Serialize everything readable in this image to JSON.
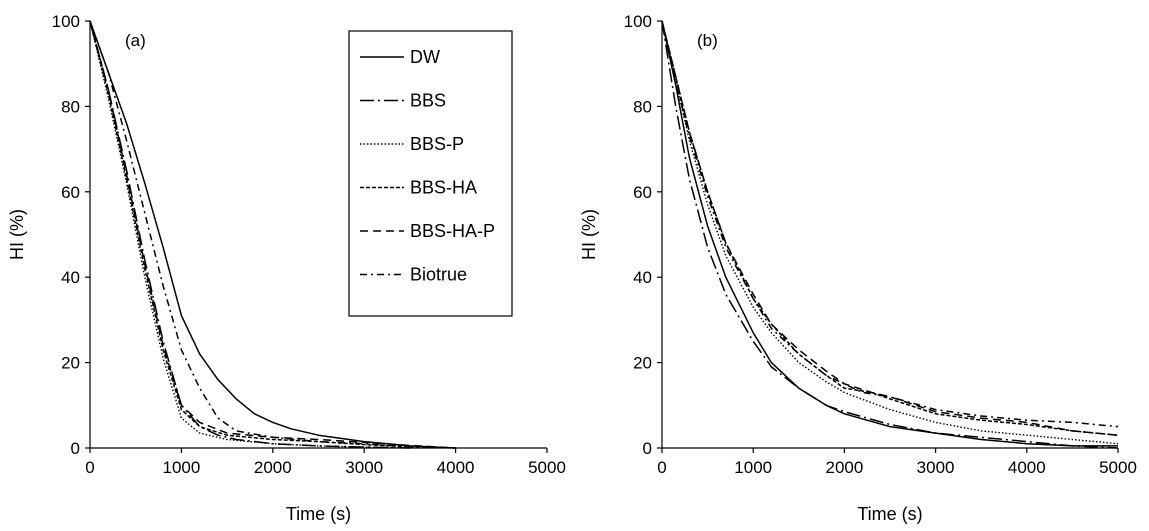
{
  "chart_data": [
    {
      "type": "line",
      "panel_label": "(a)",
      "xlabel": "Time (s)",
      "ylabel": "HI (%)",
      "xlim": [
        0,
        5000
      ],
      "ylim": [
        0,
        100
      ],
      "xticks": [
        "0",
        "1000",
        "2000",
        "3000",
        "4000",
        "5000"
      ],
      "yticks": [
        "0",
        "20",
        "40",
        "60",
        "80",
        "100"
      ],
      "grid": false,
      "legend": {
        "placement": "top-right",
        "entries": [
          "DW",
          "BBS",
          "BBS-P",
          "BBS-HA",
          "BBS-HA-P",
          "Biotrue"
        ]
      },
      "series": [
        {
          "name": "DW",
          "style": "solid",
          "points": [
            [
              0,
              100
            ],
            [
              200,
              88
            ],
            [
              400,
              76
            ],
            [
              600,
              62
            ],
            [
              800,
              47
            ],
            [
              1000,
              31
            ],
            [
              1200,
              22
            ],
            [
              1400,
              16
            ],
            [
              1600,
              11.5
            ],
            [
              1800,
              8
            ],
            [
              2000,
              6
            ],
            [
              2200,
              4.5
            ],
            [
              2500,
              3
            ],
            [
              3000,
              1.5
            ],
            [
              3500,
              0.5
            ],
            [
              4000,
              0
            ]
          ]
        },
        {
          "name": "BBS",
          "style": "dashdot-long",
          "points": [
            [
              0,
              100
            ],
            [
              200,
              84
            ],
            [
              400,
              65
            ],
            [
              600,
              44
            ],
            [
              800,
              25
            ],
            [
              1000,
              10
            ],
            [
              1200,
              5
            ],
            [
              1400,
              3
            ],
            [
              1600,
              2
            ],
            [
              2000,
              1
            ],
            [
              2500,
              0.5
            ],
            [
              3000,
              0.2
            ],
            [
              3500,
              0
            ]
          ]
        },
        {
          "name": "BBS-P",
          "style": "dotted",
          "points": [
            [
              0,
              100
            ],
            [
              200,
              82
            ],
            [
              400,
              62
            ],
            [
              600,
              40
            ],
            [
              800,
              21
            ],
            [
              1000,
              7
            ],
            [
              1200,
              3.5
            ],
            [
              1500,
              2
            ],
            [
              2000,
              1
            ],
            [
              2500,
              0.5
            ],
            [
              3000,
              0.2
            ],
            [
              3500,
              0
            ]
          ]
        },
        {
          "name": "BBS-HA",
          "style": "dashed-short",
          "points": [
            [
              0,
              100
            ],
            [
              200,
              83
            ],
            [
              400,
              63
            ],
            [
              600,
              42
            ],
            [
              800,
              23
            ],
            [
              1000,
              9
            ],
            [
              1200,
              5
            ],
            [
              1500,
              3
            ],
            [
              2000,
              2
            ],
            [
              2500,
              1.5
            ],
            [
              3000,
              0.8
            ],
            [
              3500,
              0.3
            ],
            [
              4000,
              0
            ]
          ]
        },
        {
          "name": "BBS-HA-P",
          "style": "dashed-long",
          "points": [
            [
              0,
              100
            ],
            [
              200,
              84
            ],
            [
              400,
              64
            ],
            [
              600,
              43
            ],
            [
              800,
              24
            ],
            [
              1000,
              10
            ],
            [
              1200,
              6
            ],
            [
              1500,
              3.5
            ],
            [
              2000,
              2.5
            ],
            [
              2500,
              2
            ],
            [
              3000,
              1.3
            ],
            [
              3500,
              0.6
            ],
            [
              4000,
              0
            ]
          ]
        },
        {
          "name": "Biotrue",
          "style": "dashdot",
          "points": [
            [
              0,
              100
            ],
            [
              200,
              88
            ],
            [
              400,
              72
            ],
            [
              600,
              55
            ],
            [
              800,
              38
            ],
            [
              1000,
              23
            ],
            [
              1200,
              14
            ],
            [
              1400,
              7
            ],
            [
              1600,
              4
            ],
            [
              2000,
              2.5
            ],
            [
              2500,
              1.5
            ],
            [
              3000,
              1
            ],
            [
              3500,
              0.3
            ],
            [
              4000,
              0
            ]
          ]
        }
      ]
    },
    {
      "type": "line",
      "panel_label": "(b)",
      "xlabel": "Time (s)",
      "ylabel": "HI (%)",
      "xlim": [
        0,
        5000
      ],
      "ylim": [
        0,
        100
      ],
      "xticks": [
        "0",
        "1000",
        "2000",
        "3000",
        "4000",
        "5000"
      ],
      "yticks": [
        "0",
        "20",
        "40",
        "60",
        "80",
        "100"
      ],
      "grid": false,
      "series": [
        {
          "name": "DW",
          "style": "solid",
          "points": [
            [
              0,
              100
            ],
            [
              150,
              85
            ],
            [
              300,
              68
            ],
            [
              500,
              52
            ],
            [
              700,
              40
            ],
            [
              1000,
              27
            ],
            [
              1200,
              20
            ],
            [
              1500,
              14
            ],
            [
              1800,
              10
            ],
            [
              2000,
              8
            ],
            [
              2500,
              5
            ],
            [
              3000,
              3.5
            ],
            [
              3500,
              2
            ],
            [
              4000,
              1
            ],
            [
              4500,
              0.5
            ],
            [
              5000,
              0.5
            ]
          ]
        },
        {
          "name": "BBS",
          "style": "dashdot-long",
          "points": [
            [
              0,
              100
            ],
            [
              150,
              80
            ],
            [
              300,
              63
            ],
            [
              500,
              47
            ],
            [
              700,
              36
            ],
            [
              1000,
              25
            ],
            [
              1200,
              19
            ],
            [
              1500,
              14
            ],
            [
              1800,
              10
            ],
            [
              2000,
              8.5
            ],
            [
              2500,
              5.5
            ],
            [
              3000,
              3.5
            ],
            [
              3500,
              2.5
            ],
            [
              4000,
              1.5
            ],
            [
              4500,
              0.5
            ],
            [
              5000,
              0
            ]
          ]
        },
        {
          "name": "BBS-P",
          "style": "dotted",
          "points": [
            [
              0,
              100
            ],
            [
              150,
              86
            ],
            [
              300,
              72
            ],
            [
              500,
              57
            ],
            [
              700,
              45
            ],
            [
              1000,
              33
            ],
            [
              1200,
              27
            ],
            [
              1500,
              20
            ],
            [
              1800,
              15.5
            ],
            [
              2000,
              13
            ],
            [
              2500,
              9
            ],
            [
              3000,
              6
            ],
            [
              3500,
              4
            ],
            [
              4000,
              3
            ],
            [
              4500,
              2
            ],
            [
              5000,
              1
            ]
          ]
        },
        {
          "name": "BBS-HA",
          "style": "dashed-short",
          "points": [
            [
              0,
              100
            ],
            [
              150,
              87
            ],
            [
              300,
              74
            ],
            [
              500,
              60
            ],
            [
              700,
              48
            ],
            [
              1000,
              35
            ],
            [
              1200,
              29
            ],
            [
              1500,
              22
            ],
            [
              1800,
              17
            ],
            [
              2000,
              14
            ],
            [
              2300,
              13
            ],
            [
              2500,
              11.5
            ],
            [
              3000,
              8
            ],
            [
              3500,
              6.5
            ],
            [
              4000,
              5.5
            ],
            [
              4500,
              4
            ],
            [
              5000,
              3
            ]
          ]
        },
        {
          "name": "BBS-HA-P",
          "style": "dashed-long",
          "points": [
            [
              0,
              100
            ],
            [
              150,
              87
            ],
            [
              300,
              74
            ],
            [
              500,
              60
            ],
            [
              700,
              48
            ],
            [
              1000,
              36
            ],
            [
              1200,
              29
            ],
            [
              1500,
              23
            ],
            [
              1800,
              18
            ],
            [
              2000,
              15
            ],
            [
              2300,
              13
            ],
            [
              2500,
              12
            ],
            [
              3000,
              8.5
            ],
            [
              3500,
              7
            ],
            [
              4000,
              6
            ],
            [
              4500,
              4
            ],
            [
              5000,
              3
            ]
          ]
        },
        {
          "name": "Biotrue",
          "style": "dashdot",
          "points": [
            [
              0,
              100
            ],
            [
              150,
              86
            ],
            [
              300,
              73
            ],
            [
              500,
              59
            ],
            [
              700,
              47
            ],
            [
              1000,
              35
            ],
            [
              1200,
              28
            ],
            [
              1500,
              22
            ],
            [
              1800,
              17
            ],
            [
              2000,
              15
            ],
            [
              2200,
              13
            ],
            [
              2500,
              12
            ],
            [
              3000,
              9
            ],
            [
              3500,
              7.5
            ],
            [
              4000,
              6.5
            ],
            [
              4500,
              6
            ],
            [
              5000,
              5
            ]
          ]
        }
      ]
    }
  ]
}
